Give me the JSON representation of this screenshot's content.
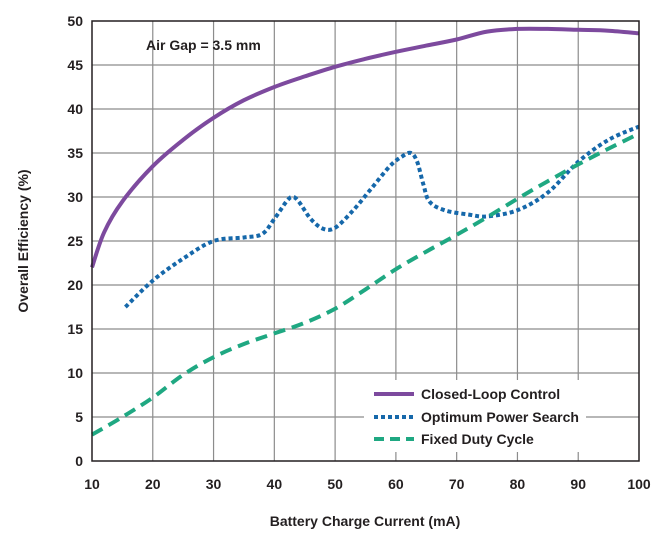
{
  "chart_data": {
    "type": "line",
    "title": "",
    "xlabel": "Battery Charge Current (mA)",
    "ylabel": "Overall Efficiency (%)",
    "xlim": [
      10,
      100
    ],
    "ylim": [
      0,
      50
    ],
    "xticks": [
      10,
      20,
      30,
      40,
      50,
      60,
      70,
      80,
      90,
      100
    ],
    "yticks": [
      0,
      5,
      10,
      15,
      20,
      25,
      30,
      35,
      40,
      45,
      50
    ],
    "grid": true,
    "legend_position": "bottom-right",
    "annotation": "Air Gap = 3.5 mm",
    "series": [
      {
        "name": "Closed-Loop Control",
        "style": "solid",
        "color": "#7d4a9e",
        "x": [
          10,
          12,
          15,
          20,
          25,
          30,
          35,
          40,
          45,
          50,
          55,
          60,
          65,
          70,
          75,
          80,
          85,
          90,
          95,
          100
        ],
        "y": [
          22,
          26,
          29.5,
          33.5,
          36.5,
          39,
          41,
          42.5,
          43.7,
          44.8,
          45.7,
          46.5,
          47.2,
          47.9,
          48.8,
          49.1,
          49.1,
          49.0,
          48.9,
          48.6
        ]
      },
      {
        "name": "Optimum Power Search",
        "style": "dotted",
        "color": "#1668aa",
        "x": [
          15.5,
          20,
          25,
          30,
          35,
          38,
          40,
          42,
          43,
          44,
          46,
          48,
          50,
          53,
          56,
          59,
          61,
          62.5,
          63.5,
          64.5,
          65.5,
          68,
          72,
          75,
          80,
          85,
          90,
          95,
          100
        ],
        "y": [
          17.5,
          20.5,
          23,
          25,
          25.4,
          25.8,
          27.5,
          29.5,
          30,
          29.5,
          27.5,
          26.4,
          26.5,
          28.5,
          31,
          33.5,
          34.6,
          35,
          34,
          31.5,
          29.5,
          28.5,
          28,
          27.8,
          28.5,
          30.5,
          34,
          36.5,
          38
        ]
      },
      {
        "name": "Fixed Duty Cycle",
        "style": "dashed",
        "color": "#1fa882",
        "x": [
          10,
          15,
          20,
          25,
          30,
          35,
          40,
          45,
          50,
          55,
          60,
          65,
          70,
          75,
          80,
          85,
          90,
          95,
          100
        ],
        "y": [
          3,
          5,
          7.2,
          9.8,
          11.8,
          13.3,
          14.5,
          15.7,
          17.3,
          19.5,
          21.8,
          23.8,
          25.7,
          27.7,
          29.8,
          31.8,
          33.7,
          35.5,
          37.2
        ]
      }
    ]
  }
}
